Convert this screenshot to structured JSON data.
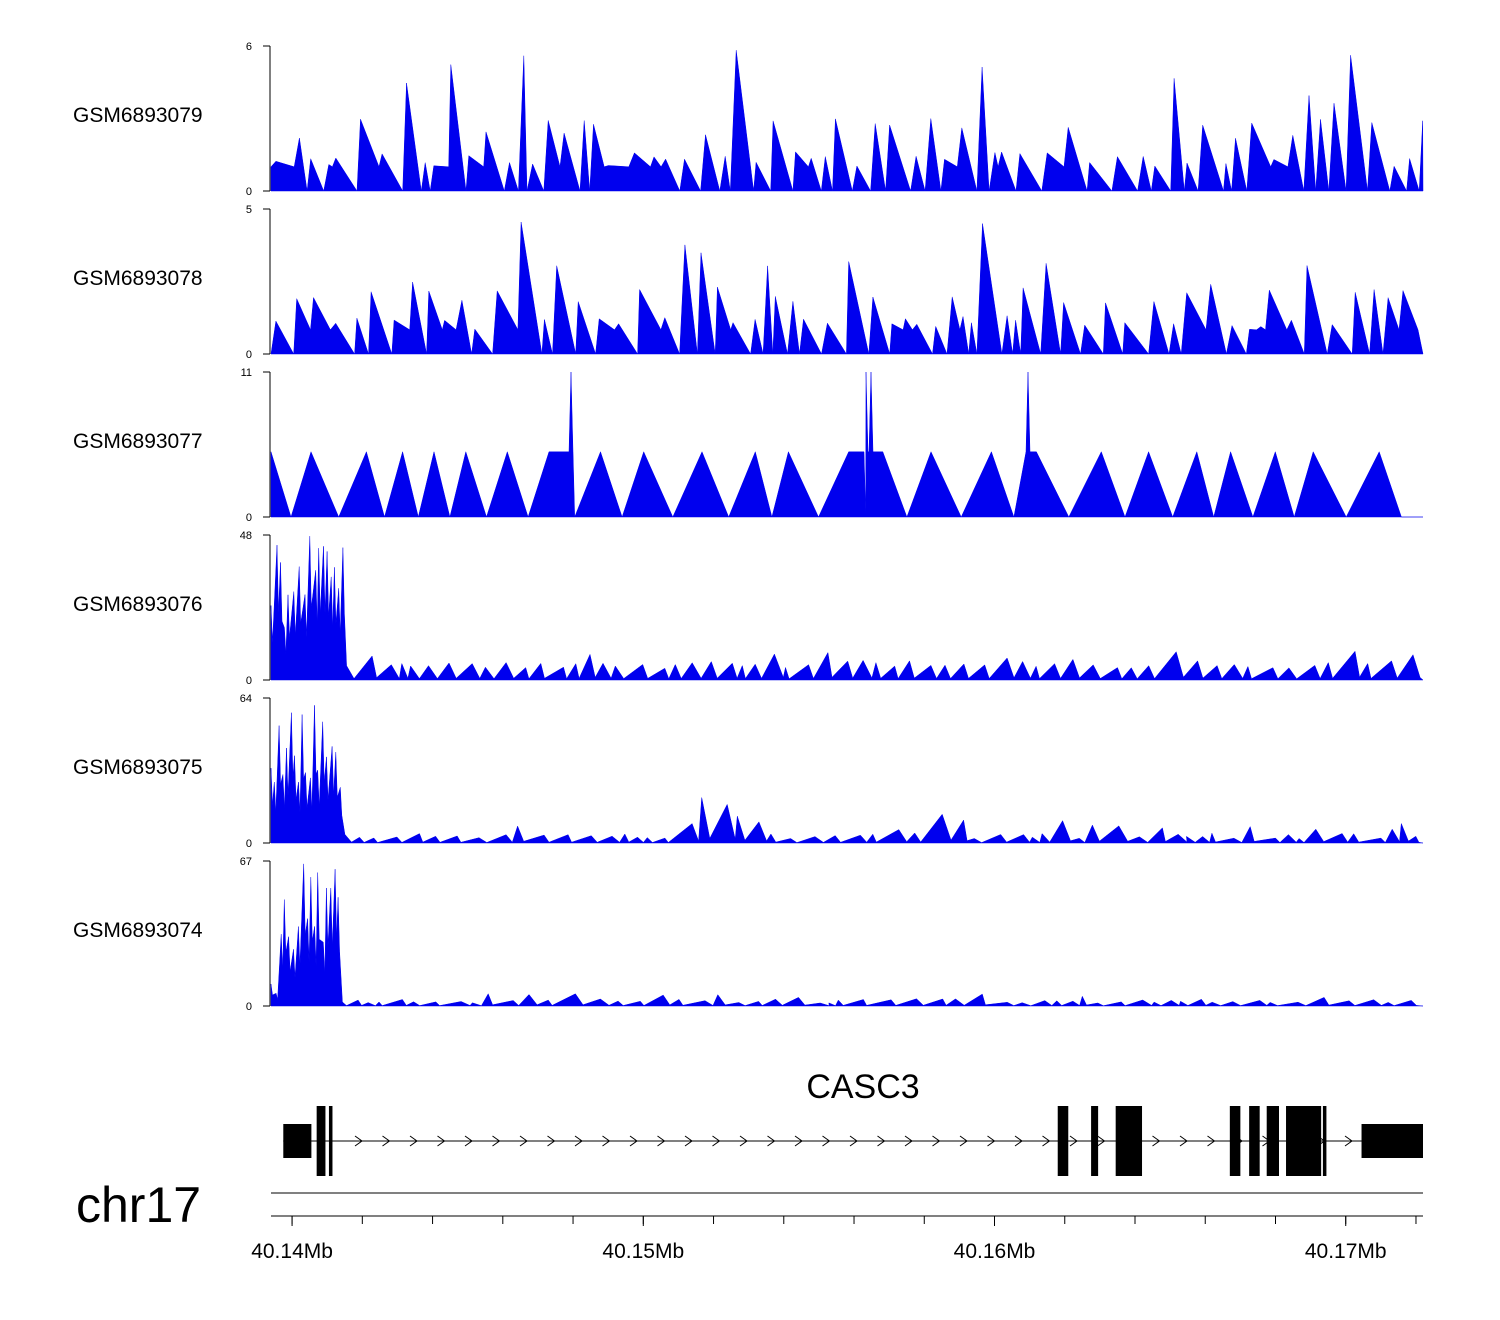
{
  "chart_data": {
    "type": "area",
    "title": "",
    "chromosome": "chr17",
    "x_range_mb": [
      40.1394,
      40.1722
    ],
    "x_ticks": [
      {
        "value": 40.14,
        "label": "40.14Mb"
      },
      {
        "value": 40.15,
        "label": "40.15Mb"
      },
      {
        "value": 40.16,
        "label": "40.16Mb"
      },
      {
        "value": 40.17,
        "label": "40.17Mb"
      }
    ],
    "minor_tick_step_mb": 0.002,
    "series_color": "#0000ee",
    "tracks": [
      {
        "name": "GSM6893079",
        "ymax": 6,
        "ymax_label": "6",
        "ymin_label": "0",
        "seed": 11,
        "profile": "uniform"
      },
      {
        "name": "GSM6893078",
        "ymax": 5,
        "ymax_label": "5",
        "ymin_label": "0",
        "seed": 23,
        "profile": "uniform"
      },
      {
        "name": "GSM6893077",
        "ymax": 11,
        "ymax_label": "11",
        "ymin_label": "0",
        "seed": 37,
        "profile": "sparse"
      },
      {
        "name": "GSM6893076",
        "ymax": 48,
        "ymax_label": "48",
        "ymin_label": "0",
        "seed": 41,
        "profile": "promoter"
      },
      {
        "name": "GSM6893075",
        "ymax": 64,
        "ymax_label": "64",
        "ymin_label": "0",
        "seed": 53,
        "profile": "promoter2"
      },
      {
        "name": "GSM6893074",
        "ymax": 67,
        "ymax_label": "67",
        "ymin_label": "0",
        "seed": 67,
        "profile": "promoter3"
      }
    ],
    "gene": {
      "name": "CASC3",
      "strand": "+",
      "exons_mb": [
        [
          40.13975,
          40.14055
        ],
        [
          40.1407,
          40.14095
        ],
        [
          40.14105,
          40.14115
        ],
        [
          40.1618,
          40.1621
        ],
        [
          40.16275,
          40.16295
        ],
        [
          40.16345,
          40.1642
        ],
        [
          40.1667,
          40.167
        ],
        [
          40.16725,
          40.16755
        ],
        [
          40.16775,
          40.1681
        ],
        [
          40.1683,
          40.1693
        ],
        [
          40.16935,
          40.16945
        ],
        [
          40.17045,
          40.1722
        ]
      ]
    }
  }
}
